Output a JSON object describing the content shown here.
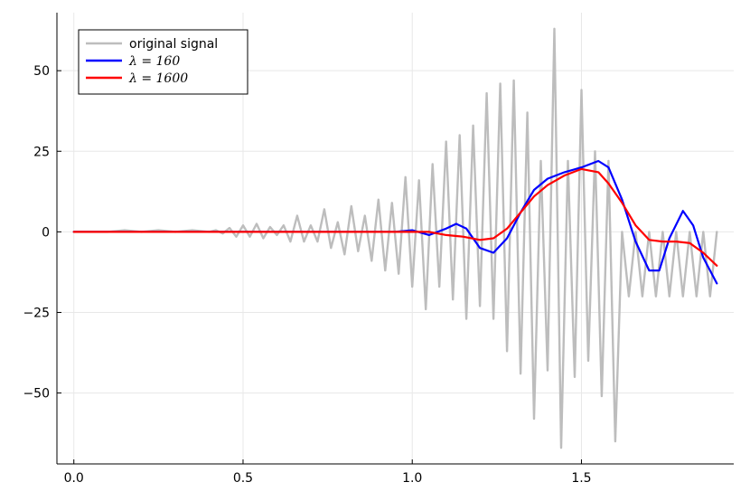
{
  "chart_data": {
    "type": "line",
    "title": "",
    "xlabel": "",
    "ylabel": "",
    "xlim": [
      -0.05,
      1.95
    ],
    "ylim": [
      -72,
      68
    ],
    "grid": true,
    "legend_position": "top-left",
    "x_ticks": [
      0.0,
      0.5,
      1.0,
      1.5
    ],
    "x_tick_labels": [
      "0.0",
      "0.5",
      "1.0",
      "1.5"
    ],
    "y_ticks": [
      50,
      25,
      0,
      -25,
      -50
    ],
    "y_tick_labels": [
      "50",
      "25",
      "0",
      "−25",
      "−50"
    ],
    "series": [
      {
        "name": "original signal",
        "color": "#bdbdbd",
        "x": [
          0.0,
          0.05,
          0.1,
          0.15,
          0.2,
          0.25,
          0.3,
          0.35,
          0.4,
          0.42,
          0.44,
          0.46,
          0.48,
          0.5,
          0.52,
          0.54,
          0.56,
          0.58,
          0.6,
          0.62,
          0.64,
          0.66,
          0.68,
          0.7,
          0.72,
          0.74,
          0.76,
          0.78,
          0.8,
          0.82,
          0.84,
          0.86,
          0.88,
          0.9,
          0.92,
          0.94,
          0.96,
          0.98,
          1.0,
          1.02,
          1.04,
          1.06,
          1.08,
          1.1,
          1.12,
          1.14,
          1.16,
          1.18,
          1.2,
          1.22,
          1.24,
          1.26,
          1.28,
          1.3,
          1.32,
          1.34,
          1.36,
          1.38,
          1.4,
          1.42,
          1.44,
          1.46,
          1.48,
          1.5,
          1.52,
          1.54,
          1.56,
          1.58,
          1.6,
          1.62,
          1.64,
          1.66,
          1.68,
          1.7,
          1.72,
          1.74,
          1.76,
          1.78,
          1.8,
          1.82,
          1.84,
          1.86,
          1.88,
          1.9
        ],
        "values": [
          0,
          0,
          0,
          0.5,
          0,
          0.5,
          0,
          0.5,
          0,
          0.5,
          -0.5,
          1.2,
          -1.5,
          2,
          -1.5,
          2.5,
          -2,
          1.5,
          -1,
          2,
          -3,
          5,
          -3,
          2,
          -3,
          7,
          -5,
          3,
          -7,
          8,
          -6,
          5,
          -9,
          10,
          -12,
          9,
          -13,
          17,
          -17,
          16,
          -24,
          21,
          -17,
          28,
          -21,
          30,
          -27,
          33,
          -23,
          43,
          -27,
          46,
          -37,
          47,
          -44,
          37,
          -58,
          22,
          -43,
          63,
          -67,
          22,
          -45,
          44,
          -40,
          25,
          -51,
          22,
          -65,
          0,
          -20,
          0,
          -20,
          0,
          -20,
          0,
          -20,
          0,
          -20,
          0,
          -20,
          0,
          -20,
          0
        ],
        "note": "values beyond x=1.58 continue oscillating with large amplitude"
      },
      {
        "name": "λ = 160",
        "color": "#0000ff",
        "x": [
          0.0,
          0.1,
          0.2,
          0.3,
          0.4,
          0.5,
          0.6,
          0.7,
          0.8,
          0.9,
          0.95,
          1.0,
          1.05,
          1.1,
          1.13,
          1.16,
          1.2,
          1.24,
          1.28,
          1.32,
          1.36,
          1.4,
          1.45,
          1.5,
          1.55,
          1.58,
          1.62,
          1.66,
          1.7,
          1.73,
          1.76,
          1.8,
          1.83,
          1.86,
          1.9
        ],
        "values": [
          0,
          0,
          0,
          0,
          0,
          0,
          0,
          0,
          0,
          0,
          0,
          0.5,
          -1,
          1,
          2.5,
          1,
          -5,
          -6.5,
          -2,
          6,
          13,
          16.5,
          18.5,
          20,
          22,
          20,
          10,
          -3,
          -12,
          -12,
          -2,
          6.5,
          2,
          -8,
          -16
        ]
      },
      {
        "name": "λ = 1600",
        "color": "#ff0000",
        "x": [
          0.0,
          0.1,
          0.2,
          0.3,
          0.4,
          0.5,
          0.6,
          0.7,
          0.8,
          0.9,
          0.95,
          1.0,
          1.05,
          1.1,
          1.15,
          1.2,
          1.24,
          1.28,
          1.32,
          1.36,
          1.4,
          1.45,
          1.5,
          1.55,
          1.58,
          1.62,
          1.66,
          1.7,
          1.74,
          1.78,
          1.82,
          1.86,
          1.9
        ],
        "values": [
          0,
          0,
          0,
          0,
          0,
          0,
          0,
          0,
          0,
          0,
          0,
          0,
          0,
          -1,
          -1.5,
          -2.5,
          -2,
          1,
          6,
          11,
          14.5,
          17.5,
          19.5,
          18.5,
          15,
          9,
          2,
          -2.5,
          -3,
          -3,
          -3.5,
          -6.5,
          -10.5
        ]
      }
    ]
  }
}
